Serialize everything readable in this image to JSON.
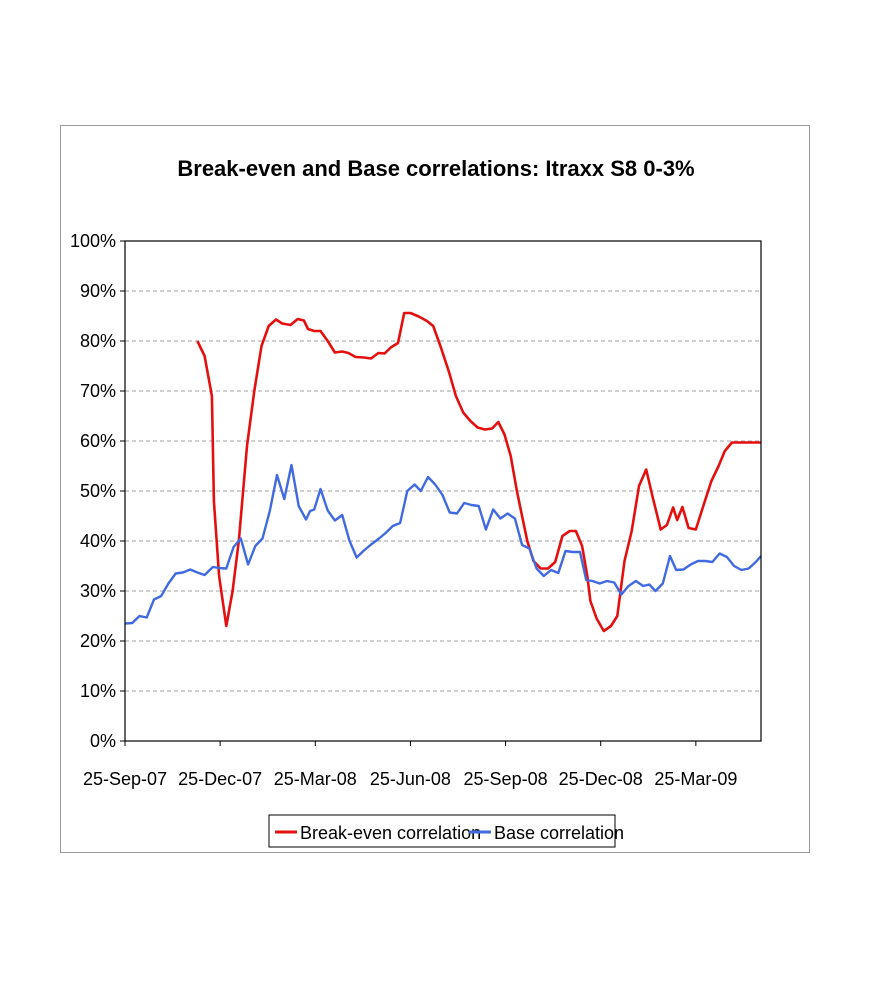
{
  "chart_data": {
    "type": "line",
    "title": "Break-even and Base correlations: Itraxx S8 0-3%",
    "xlabel": "",
    "ylabel": "",
    "ylim": [
      0,
      100
    ],
    "yticks": [
      "0%",
      "10%",
      "20%",
      "30%",
      "40%",
      "50%",
      "60%",
      "70%",
      "80%",
      "90%",
      "100%"
    ],
    "xticks": [
      "25-Sep-07",
      "25-Dec-07",
      "25-Mar-08",
      "25-Jun-08",
      "25-Sep-08",
      "25-Dec-08",
      "25-Mar-09"
    ],
    "xlim_days": [
      0,
      615
    ],
    "legend_position": "bottom",
    "grid": true,
    "series": [
      {
        "name": "Break-even correlation",
        "color": "#e41010",
        "points": [
          [
            70,
            80
          ],
          [
            77,
            77
          ],
          [
            84,
            69
          ],
          [
            86,
            48
          ],
          [
            91,
            33
          ],
          [
            98,
            23
          ],
          [
            104,
            30
          ],
          [
            110,
            40
          ],
          [
            118,
            59
          ],
          [
            125,
            70
          ],
          [
            132,
            79
          ],
          [
            139,
            83
          ],
          [
            146,
            84.3
          ],
          [
            152,
            83.5
          ],
          [
            160,
            83.2
          ],
          [
            167,
            84.4
          ],
          [
            173,
            84.1
          ],
          [
            177,
            82.4
          ],
          [
            183,
            82
          ],
          [
            189,
            82
          ],
          [
            196,
            80
          ],
          [
            203,
            77.7
          ],
          [
            210,
            77.9
          ],
          [
            216,
            77.6
          ],
          [
            223,
            76.8
          ],
          [
            231,
            76.7
          ],
          [
            238,
            76.5
          ],
          [
            245,
            77.6
          ],
          [
            251,
            77.5
          ],
          [
            257,
            78.7
          ],
          [
            264,
            79.6
          ],
          [
            270,
            85.6
          ],
          [
            276,
            85.6
          ],
          [
            284,
            84.9
          ],
          [
            292,
            84
          ],
          [
            298,
            83
          ],
          [
            305,
            79
          ],
          [
            313,
            74
          ],
          [
            320,
            69
          ],
          [
            327,
            65.7
          ],
          [
            334,
            64
          ],
          [
            341,
            62.7
          ],
          [
            348,
            62.3
          ],
          [
            355,
            62.5
          ],
          [
            361,
            63.8
          ],
          [
            367,
            61.3
          ],
          [
            373,
            57
          ],
          [
            379,
            50
          ],
          [
            385,
            44
          ],
          [
            389,
            40
          ],
          [
            395,
            36
          ],
          [
            402,
            34.5
          ],
          [
            409,
            34.5
          ],
          [
            416,
            35.8
          ],
          [
            423,
            41
          ],
          [
            430,
            42
          ],
          [
            436,
            42
          ],
          [
            442,
            39
          ],
          [
            447,
            33
          ],
          [
            450,
            28
          ],
          [
            456,
            24.5
          ],
          [
            463,
            22
          ],
          [
            470,
            23
          ],
          [
            476,
            25
          ],
          [
            483,
            36
          ],
          [
            490,
            42
          ],
          [
            497,
            51
          ],
          [
            504,
            54.3
          ],
          [
            510,
            49
          ],
          [
            518,
            42.3
          ],
          [
            524,
            43.2
          ],
          [
            530,
            46.7
          ],
          [
            534,
            44.2
          ],
          [
            539,
            46.8
          ],
          [
            545,
            42.6
          ],
          [
            552,
            42.3
          ],
          [
            560,
            47.5
          ],
          [
            567,
            52
          ],
          [
            574,
            55
          ],
          [
            580,
            58
          ],
          [
            587,
            59.7
          ],
          [
            594,
            59.7
          ],
          [
            601,
            59.7
          ],
          [
            608,
            59.7
          ],
          [
            615,
            59.7
          ]
        ]
      },
      {
        "name": "Base correlation",
        "color": "#4169e1",
        "points": [
          [
            0,
            23.5
          ],
          [
            7,
            23.6
          ],
          [
            14,
            25
          ],
          [
            21,
            24.7
          ],
          [
            28,
            28.3
          ],
          [
            35,
            29
          ],
          [
            42,
            31.5
          ],
          [
            49,
            33.5
          ],
          [
            56,
            33.7
          ],
          [
            63,
            34.3
          ],
          [
            70,
            33.7
          ],
          [
            77,
            33.2
          ],
          [
            85,
            34.8
          ],
          [
            91,
            34.6
          ],
          [
            98,
            34.5
          ],
          [
            105,
            38.8
          ],
          [
            112,
            40.5
          ],
          [
            119,
            35.3
          ],
          [
            126,
            39
          ],
          [
            133,
            40.5
          ],
          [
            140,
            46
          ],
          [
            147,
            53.2
          ],
          [
            154,
            48.4
          ],
          [
            161,
            55.2
          ],
          [
            168,
            47
          ],
          [
            175,
            44.3
          ],
          [
            179,
            46
          ],
          [
            183,
            46.3
          ],
          [
            189,
            50.4
          ],
          [
            196,
            46.1
          ],
          [
            203,
            44.1
          ],
          [
            210,
            45.2
          ],
          [
            217,
            40.1
          ],
          [
            224,
            36.7
          ],
          [
            231,
            38.1
          ],
          [
            238,
            39.3
          ],
          [
            245,
            40.4
          ],
          [
            252,
            41.6
          ],
          [
            259,
            43
          ],
          [
            266,
            43.6
          ],
          [
            273,
            50
          ],
          [
            280,
            51.3
          ],
          [
            286,
            50
          ],
          [
            293,
            52.8
          ],
          [
            300,
            51.3
          ],
          [
            307,
            49.2
          ],
          [
            314,
            45.7
          ],
          [
            321,
            45.5
          ],
          [
            328,
            47.6
          ],
          [
            335,
            47.2
          ],
          [
            342,
            47
          ],
          [
            349,
            42.3
          ],
          [
            356,
            46.3
          ],
          [
            363,
            44.5
          ],
          [
            370,
            45.5
          ],
          [
            377,
            44.5
          ],
          [
            384,
            39.2
          ],
          [
            391,
            38.5
          ],
          [
            398,
            34.5
          ],
          [
            405,
            33
          ],
          [
            412,
            34.2
          ],
          [
            419,
            33.6
          ],
          [
            426,
            38
          ],
          [
            433,
            37.8
          ],
          [
            440,
            37.8
          ],
          [
            446,
            32.2
          ],
          [
            452,
            32
          ],
          [
            459,
            31.5
          ],
          [
            466,
            32
          ],
          [
            473,
            31.7
          ],
          [
            480,
            29.3
          ],
          [
            487,
            31
          ],
          [
            494,
            32
          ],
          [
            501,
            31
          ],
          [
            507,
            31.3
          ],
          [
            513,
            30
          ],
          [
            520,
            31.5
          ],
          [
            527,
            37
          ],
          [
            533,
            34.2
          ],
          [
            540,
            34.3
          ],
          [
            547,
            35.3
          ],
          [
            554,
            36
          ],
          [
            561,
            36
          ],
          [
            568,
            35.8
          ],
          [
            575,
            37.5
          ],
          [
            582,
            36.8
          ],
          [
            589,
            35
          ],
          [
            596,
            34.2
          ],
          [
            603,
            34.5
          ],
          [
            610,
            35.8
          ],
          [
            615,
            37
          ]
        ]
      }
    ]
  }
}
